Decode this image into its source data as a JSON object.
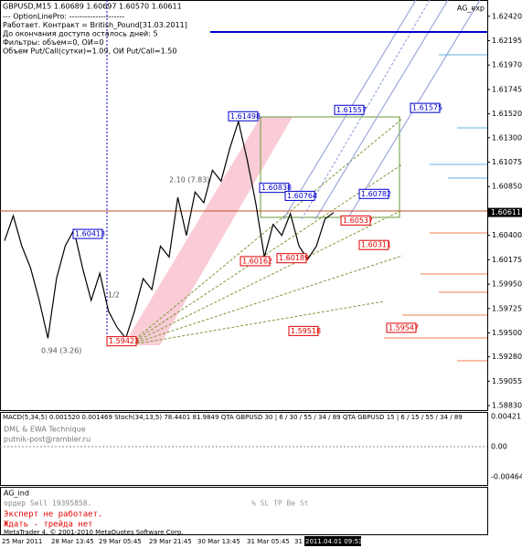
{
  "chart_data": {
    "type": "line",
    "title": "GBPUSD,M15 1.60689 1.60697 1.60570 1.60611",
    "color": "#000000",
    "values": [
      1.6035,
      1.6058,
      1.603,
      1.601,
      1.598,
      1.5945,
      1.6,
      1.603,
      1.6045,
      1.601,
      1.598,
      1.6005,
      1.597,
      1.5955,
      1.5945,
      1.597,
      1.6,
      1.599,
      1.603,
      1.602,
      1.6075,
      1.604,
      1.608,
      1.607,
      1.61,
      1.609,
      1.612,
      1.6145,
      1.611,
      1.607,
      1.602,
      1.605,
      1.604,
      1.606,
      1.603,
      1.6018,
      1.603,
      1.6055,
      1.6061
    ],
    "ylim": [
      1.5878,
      1.6257
    ],
    "yticks": [
      {
        "value": 1.6242,
        "label": "1.62420"
      },
      {
        "value": 1.62195,
        "label": "1.62195"
      },
      {
        "value": 1.6197,
        "label": "1.61970"
      },
      {
        "value": 1.61745,
        "label": "1.61745"
      },
      {
        "value": 1.6152,
        "label": "1.61520"
      },
      {
        "value": 1.613,
        "label": "1.61300"
      },
      {
        "value": 1.61075,
        "label": "1.61075"
      },
      {
        "value": 1.6085,
        "label": "1.60850"
      },
      {
        "value": 1.604,
        "label": "1.60400"
      },
      {
        "value": 1.60175,
        "label": "1.60175"
      },
      {
        "value": 1.5995,
        "label": "1.59950"
      },
      {
        "value": 1.59725,
        "label": "1.59725"
      },
      {
        "value": 1.595,
        "label": "1.59500"
      },
      {
        "value": 1.5928,
        "label": "1.59280"
      },
      {
        "value": 1.59055,
        "label": "1.59055"
      },
      {
        "value": 1.5883,
        "label": "1.58830"
      }
    ],
    "current": {
      "value": 1.60611,
      "label": "1.60611"
    },
    "levels": [
      {
        "value": 1.61498,
        "label": "1.61498"
      },
      {
        "value": 1.61557,
        "label": "1.61557"
      },
      {
        "value": 1.61575,
        "label": "1.61575"
      },
      {
        "value": 1.60838,
        "label": "1.60838"
      },
      {
        "value": 1.60764,
        "label": "1.60764"
      },
      {
        "value": 1.60782,
        "label": "1.60782"
      },
      {
        "value": 1.60413,
        "label": "1.60413"
      },
      {
        "value": 1.60537,
        "label": "1.60537"
      },
      {
        "value": 1.60311,
        "label": "1.60311"
      },
      {
        "value": 1.60162,
        "label": "1.60162"
      },
      {
        "value": 1.60189,
        "label": "1.60189"
      },
      {
        "value": 1.59423,
        "label": "1.59423"
      },
      {
        "value": 1.59518,
        "label": "1.59518"
      },
      {
        "value": 1.59547,
        "label": "1.59547"
      }
    ],
    "indicator_name": "AG_exp",
    "info": [
      "--- OptionLinePro: ---------------------",
      "Работает. Контракт = British_Pound[31.03.2011]",
      "До окончания доступа осталось дней: 5",
      "Фильтры: объем=0, ОИ=0",
      "Объем Put/Call(сутки)=1.09, ОИ Put/Call=1.50"
    ],
    "annotations": [
      "2.10 (7.83)",
      "0.94 (3.26)",
      "1/2"
    ],
    "time_labels": [
      "25 Mar 2011",
      "28 Mar 13:45",
      "29 Mar 05:45",
      "29 Mar 21:45",
      "30 Mar 13:45",
      "31 Mar 05:45",
      "31",
      "2011.04.01 09:53"
    ]
  },
  "macd_panel": {
    "header": "MACD(5,34,5) 0.001520 0.001469  Stoch(34,13,5) 78.4401 81.9849  QTA GBPUSD 30 | 6 / 30 / 55 / 34 / 89  QTA GBPUSD 15 | 6 / 15 / 55 / 34 / 89",
    "notes": [
      "DML & EWA Technique",
      "putnik-post@rambler.ru"
    ],
    "ticks": [
      "0.00421",
      "0.00",
      "-0.00464"
    ]
  },
  "expert_panel": {
    "name": "AG_ind",
    "order": "ордер Sell 19395858.",
    "status": "Эксперт не работает.",
    "advice": "Ждать - трейда нет",
    "columns": "%  SL  TP  Be  St",
    "copyright": "MetaTrader 4, © 2001-2010 MetaQuotes Software Corp."
  }
}
